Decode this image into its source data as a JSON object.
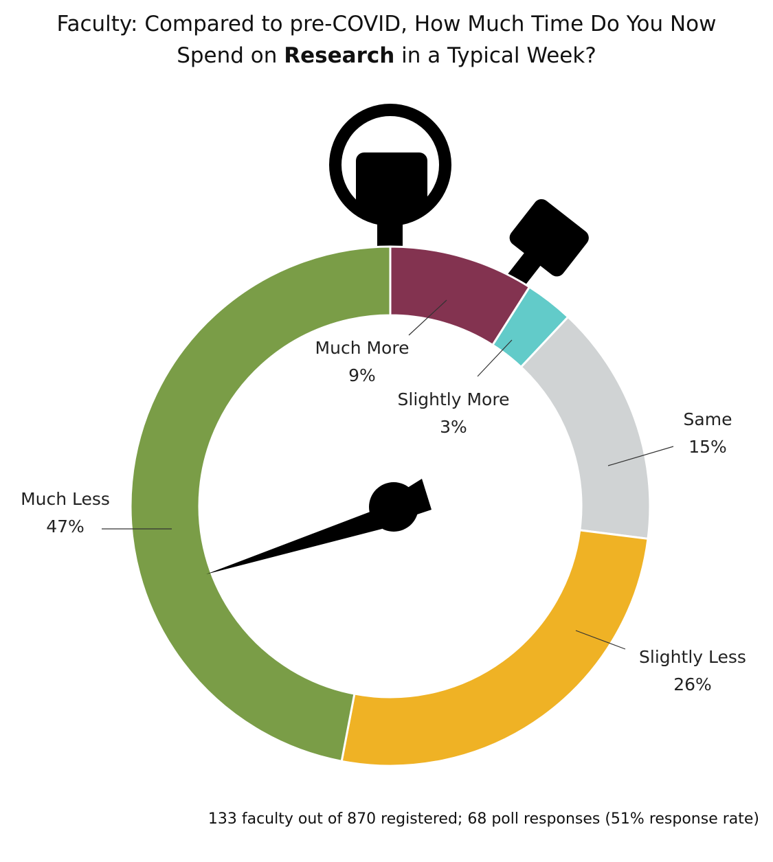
{
  "chart_data": {
    "type": "donut",
    "title": {
      "line1": "Faculty: Compared to pre-COVID, How Much Time Do You Now",
      "line2_start": "Spend on ",
      "line2_bold": "Research",
      "line2_end": " in a Typical Week?"
    },
    "categories": [
      "Much More",
      "Slightly More",
      "Same",
      "Slightly Less",
      "Much Less"
    ],
    "values": [
      9,
      3,
      15,
      26,
      47
    ],
    "value_labels": [
      "9%",
      "3%",
      "15%",
      "26%",
      "47%"
    ],
    "colors": [
      "#833350",
      "#62cbc9",
      "#d0d3d4",
      "#efb225",
      "#7a9d47"
    ],
    "footnote": "133 faculty out of 870 registered; 68 poll responses (51% response rate)"
  }
}
